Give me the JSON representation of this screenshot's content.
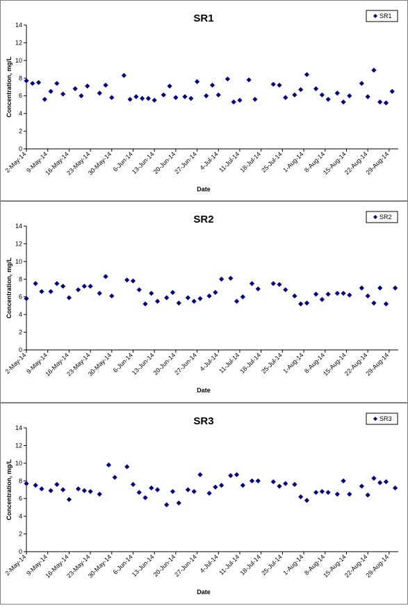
{
  "chart_data": [
    {
      "type": "scatter",
      "title": "SR1",
      "xlabel": "Date",
      "ylabel": "Concentration, mg/L",
      "ylim": [
        0,
        14
      ],
      "yticks": [
        0,
        2,
        4,
        6,
        8,
        10,
        12,
        14
      ],
      "xlim": [
        "2-May-14",
        "1-Sep-14"
      ],
      "xticks": [
        "2-May-14",
        "9-May-14",
        "16-May-14",
        "23-May-14",
        "30-May-14",
        "6-Jun-14",
        "13-Jun-14",
        "20-Jun-14",
        "27-Jun-14",
        "4-Jul-14",
        "11-Jul-14",
        "18-Jul-14",
        "25-Jul-14",
        "1-Aug-14",
        "8-Aug-14",
        "15-Aug-14",
        "22-Aug-14",
        "29-Aug-14"
      ],
      "grid": false,
      "legend_position": "top-right",
      "series": [
        {
          "name": "SR1",
          "color": "#000080",
          "marker": "diamond",
          "points": [
            {
              "x": "2-May-14",
              "y": 7.7
            },
            {
              "x": "4-May-14",
              "y": 7.4
            },
            {
              "x": "6-May-14",
              "y": 7.5
            },
            {
              "x": "8-May-14",
              "y": 5.6
            },
            {
              "x": "10-May-14",
              "y": 6.5
            },
            {
              "x": "12-May-14",
              "y": 7.4
            },
            {
              "x": "14-May-14",
              "y": 6.2
            },
            {
              "x": "18-May-14",
              "y": 6.8
            },
            {
              "x": "20-May-14",
              "y": 6.0
            },
            {
              "x": "22-May-14",
              "y": 7.1
            },
            {
              "x": "26-May-14",
              "y": 6.3
            },
            {
              "x": "28-May-14",
              "y": 7.2
            },
            {
              "x": "30-May-14",
              "y": 5.8
            },
            {
              "x": "3-Jun-14",
              "y": 8.3
            },
            {
              "x": "5-Jun-14",
              "y": 5.6
            },
            {
              "x": "7-Jun-14",
              "y": 5.9
            },
            {
              "x": "9-Jun-14",
              "y": 5.7
            },
            {
              "x": "11-Jun-14",
              "y": 5.7
            },
            {
              "x": "13-Jun-14",
              "y": 5.5
            },
            {
              "x": "16-Jun-14",
              "y": 6.1
            },
            {
              "x": "18-Jun-14",
              "y": 7.1
            },
            {
              "x": "20-Jun-14",
              "y": 5.8
            },
            {
              "x": "23-Jun-14",
              "y": 5.9
            },
            {
              "x": "25-Jun-14",
              "y": 5.7
            },
            {
              "x": "27-Jun-14",
              "y": 7.6
            },
            {
              "x": "30-Jun-14",
              "y": 6.0
            },
            {
              "x": "2-Jul-14",
              "y": 7.2
            },
            {
              "x": "4-Jul-14",
              "y": 6.1
            },
            {
              "x": "7-Jul-14",
              "y": 7.9
            },
            {
              "x": "9-Jul-14",
              "y": 5.3
            },
            {
              "x": "11-Jul-14",
              "y": 5.5
            },
            {
              "x": "14-Jul-14",
              "y": 7.8
            },
            {
              "x": "16-Jul-14",
              "y": 5.6
            },
            {
              "x": "22-Jul-14",
              "y": 7.3
            },
            {
              "x": "24-Jul-14",
              "y": 7.2
            },
            {
              "x": "26-Jul-14",
              "y": 5.8
            },
            {
              "x": "29-Jul-14",
              "y": 6.1
            },
            {
              "x": "31-Jul-14",
              "y": 6.7
            },
            {
              "x": "2-Aug-14",
              "y": 8.4
            },
            {
              "x": "5-Aug-14",
              "y": 6.8
            },
            {
              "x": "7-Aug-14",
              "y": 6.1
            },
            {
              "x": "9-Aug-14",
              "y": 5.6
            },
            {
              "x": "12-Aug-14",
              "y": 6.3
            },
            {
              "x": "14-Aug-14",
              "y": 5.3
            },
            {
              "x": "16-Aug-14",
              "y": 6.0
            },
            {
              "x": "20-Aug-14",
              "y": 7.4
            },
            {
              "x": "22-Aug-14",
              "y": 5.9
            },
            {
              "x": "24-Aug-14",
              "y": 8.9
            },
            {
              "x": "26-Aug-14",
              "y": 5.3
            },
            {
              "x": "28-Aug-14",
              "y": 5.2
            },
            {
              "x": "30-Aug-14",
              "y": 6.5
            }
          ]
        }
      ]
    },
    {
      "type": "scatter",
      "title": "SR2",
      "xlabel": "Date",
      "ylabel": "Concentration, mg/L",
      "ylim": [
        0,
        14
      ],
      "yticks": [
        0,
        2,
        4,
        6,
        8,
        10,
        12,
        14
      ],
      "xlim": [
        "2-May-14",
        "1-Sep-14"
      ],
      "xticks": [
        "2-May-14",
        "9-May-14",
        "16-May-14",
        "23-May-14",
        "30-May-14",
        "6-Jun-14",
        "13-Jun-14",
        "20-Jun-14",
        "27-Jun-14",
        "4-Jul-14",
        "11-Jul-14",
        "18-Jul-14",
        "25-Jul-14",
        "1-Aug-14",
        "8-Aug-14",
        "15-Aug-14",
        "22-Aug-14",
        "29-Aug-14"
      ],
      "grid": false,
      "legend_position": "top-right",
      "series": [
        {
          "name": "SR2",
          "color": "#000080",
          "marker": "diamond",
          "points": [
            {
              "x": "2-May-14",
              "y": 5.8
            },
            {
              "x": "5-May-14",
              "y": 7.5
            },
            {
              "x": "7-May-14",
              "y": 6.6
            },
            {
              "x": "10-May-14",
              "y": 6.6
            },
            {
              "x": "12-May-14",
              "y": 7.5
            },
            {
              "x": "14-May-14",
              "y": 7.2
            },
            {
              "x": "16-May-14",
              "y": 5.9
            },
            {
              "x": "19-May-14",
              "y": 6.8
            },
            {
              "x": "21-May-14",
              "y": 7.2
            },
            {
              "x": "23-May-14",
              "y": 7.2
            },
            {
              "x": "26-May-14",
              "y": 6.4
            },
            {
              "x": "28-May-14",
              "y": 8.3
            },
            {
              "x": "30-May-14",
              "y": 6.1
            },
            {
              "x": "4-Jun-14",
              "y": 7.9
            },
            {
              "x": "6-Jun-14",
              "y": 7.8
            },
            {
              "x": "8-Jun-14",
              "y": 6.8
            },
            {
              "x": "10-Jun-14",
              "y": 5.2
            },
            {
              "x": "12-Jun-14",
              "y": 6.4
            },
            {
              "x": "14-Jun-14",
              "y": 5.5
            },
            {
              "x": "17-Jun-14",
              "y": 5.9
            },
            {
              "x": "19-Jun-14",
              "y": 6.5
            },
            {
              "x": "21-Jun-14",
              "y": 5.3
            },
            {
              "x": "24-Jun-14",
              "y": 5.9
            },
            {
              "x": "26-Jun-14",
              "y": 5.5
            },
            {
              "x": "28-Jun-14",
              "y": 5.8
            },
            {
              "x": "1-Jul-14",
              "y": 6.1
            },
            {
              "x": "3-Jul-14",
              "y": 6.5
            },
            {
              "x": "5-Jul-14",
              "y": 8.0
            },
            {
              "x": "8-Jul-14",
              "y": 8.1
            },
            {
              "x": "10-Jul-14",
              "y": 5.5
            },
            {
              "x": "12-Jul-14",
              "y": 6.0
            },
            {
              "x": "15-Jul-14",
              "y": 7.5
            },
            {
              "x": "17-Jul-14",
              "y": 6.9
            },
            {
              "x": "22-Jul-14",
              "y": 7.5
            },
            {
              "x": "24-Jul-14",
              "y": 7.4
            },
            {
              "x": "26-Jul-14",
              "y": 6.8
            },
            {
              "x": "29-Jul-14",
              "y": 6.1
            },
            {
              "x": "31-Jul-14",
              "y": 5.2
            },
            {
              "x": "2-Aug-14",
              "y": 5.3
            },
            {
              "x": "5-Aug-14",
              "y": 6.3
            },
            {
              "x": "7-Aug-14",
              "y": 5.7
            },
            {
              "x": "9-Aug-14",
              "y": 6.3
            },
            {
              "x": "12-Aug-14",
              "y": 6.4
            },
            {
              "x": "14-Aug-14",
              "y": 6.4
            },
            {
              "x": "16-Aug-14",
              "y": 6.2
            },
            {
              "x": "20-Aug-14",
              "y": 7.0
            },
            {
              "x": "22-Aug-14",
              "y": 6.1
            },
            {
              "x": "24-Aug-14",
              "y": 5.3
            },
            {
              "x": "26-Aug-14",
              "y": 7.0
            },
            {
              "x": "28-Aug-14",
              "y": 5.2
            },
            {
              "x": "31-Aug-14",
              "y": 7.0
            }
          ]
        }
      ]
    },
    {
      "type": "scatter",
      "title": "SR3",
      "xlabel": "Date",
      "ylabel": "Concentration, mg/L",
      "ylim": [
        0,
        14
      ],
      "yticks": [
        0,
        2,
        4,
        6,
        8,
        10,
        12,
        14
      ],
      "xlim": [
        "2-May-14",
        "1-Sep-14"
      ],
      "xticks": [
        "2-May-14",
        "9-May-14",
        "16-May-14",
        "23-May-14",
        "30-May-14",
        "6-Jun-14",
        "13-Jun-14",
        "20-Jun-14",
        "27-Jun-14",
        "4-Jul-14",
        "11-Jul-14",
        "18-Jul-14",
        "25-Jul-14",
        "1-Aug-14",
        "8-Aug-14",
        "15-Aug-14",
        "22-Aug-14",
        "29-Aug-14"
      ],
      "grid": false,
      "legend_position": "top-right",
      "series": [
        {
          "name": "SR3",
          "color": "#000080",
          "marker": "diamond",
          "points": [
            {
              "x": "2-May-14",
              "y": 7.7
            },
            {
              "x": "5-May-14",
              "y": 7.5
            },
            {
              "x": "7-May-14",
              "y": 7.1
            },
            {
              "x": "10-May-14",
              "y": 6.9
            },
            {
              "x": "12-May-14",
              "y": 7.6
            },
            {
              "x": "14-May-14",
              "y": 7.0
            },
            {
              "x": "16-May-14",
              "y": 5.9
            },
            {
              "x": "19-May-14",
              "y": 7.1
            },
            {
              "x": "21-May-14",
              "y": 6.9
            },
            {
              "x": "23-May-14",
              "y": 6.8
            },
            {
              "x": "26-May-14",
              "y": 6.5
            },
            {
              "x": "29-May-14",
              "y": 9.8
            },
            {
              "x": "31-May-14",
              "y": 8.4
            },
            {
              "x": "4-Jun-14",
              "y": 9.6
            },
            {
              "x": "6-Jun-14",
              "y": 7.6
            },
            {
              "x": "8-Jun-14",
              "y": 6.7
            },
            {
              "x": "10-Jun-14",
              "y": 6.1
            },
            {
              "x": "12-Jun-14",
              "y": 7.2
            },
            {
              "x": "14-Jun-14",
              "y": 7.0
            },
            {
              "x": "17-Jun-14",
              "y": 5.3
            },
            {
              "x": "19-Jun-14",
              "y": 6.8
            },
            {
              "x": "21-Jun-14",
              "y": 5.5
            },
            {
              "x": "24-Jun-14",
              "y": 7.0
            },
            {
              "x": "26-Jun-14",
              "y": 6.8
            },
            {
              "x": "28-Jun-14",
              "y": 8.7
            },
            {
              "x": "1-Jul-14",
              "y": 6.6
            },
            {
              "x": "3-Jul-14",
              "y": 7.3
            },
            {
              "x": "5-Jul-14",
              "y": 7.5
            },
            {
              "x": "8-Jul-14",
              "y": 8.6
            },
            {
              "x": "10-Jul-14",
              "y": 8.7
            },
            {
              "x": "12-Jul-14",
              "y": 7.5
            },
            {
              "x": "15-Jul-14",
              "y": 8.0
            },
            {
              "x": "17-Jul-14",
              "y": 8.0
            },
            {
              "x": "22-Jul-14",
              "y": 7.9
            },
            {
              "x": "24-Jul-14",
              "y": 7.4
            },
            {
              "x": "26-Jul-14",
              "y": 7.7
            },
            {
              "x": "29-Jul-14",
              "y": 7.6
            },
            {
              "x": "31-Jul-14",
              "y": 6.2
            },
            {
              "x": "2-Aug-14",
              "y": 5.8
            },
            {
              "x": "5-Aug-14",
              "y": 6.7
            },
            {
              "x": "7-Aug-14",
              "y": 6.8
            },
            {
              "x": "9-Aug-14",
              "y": 6.7
            },
            {
              "x": "12-Aug-14",
              "y": 6.5
            },
            {
              "x": "14-Aug-14",
              "y": 8.0
            },
            {
              "x": "16-Aug-14",
              "y": 6.5
            },
            {
              "x": "20-Aug-14",
              "y": 7.4
            },
            {
              "x": "22-Aug-14",
              "y": 6.4
            },
            {
              "x": "24-Aug-14",
              "y": 8.3
            },
            {
              "x": "26-Aug-14",
              "y": 7.8
            },
            {
              "x": "28-Aug-14",
              "y": 7.9
            },
            {
              "x": "31-Aug-14",
              "y": 7.2
            }
          ]
        }
      ]
    }
  ]
}
